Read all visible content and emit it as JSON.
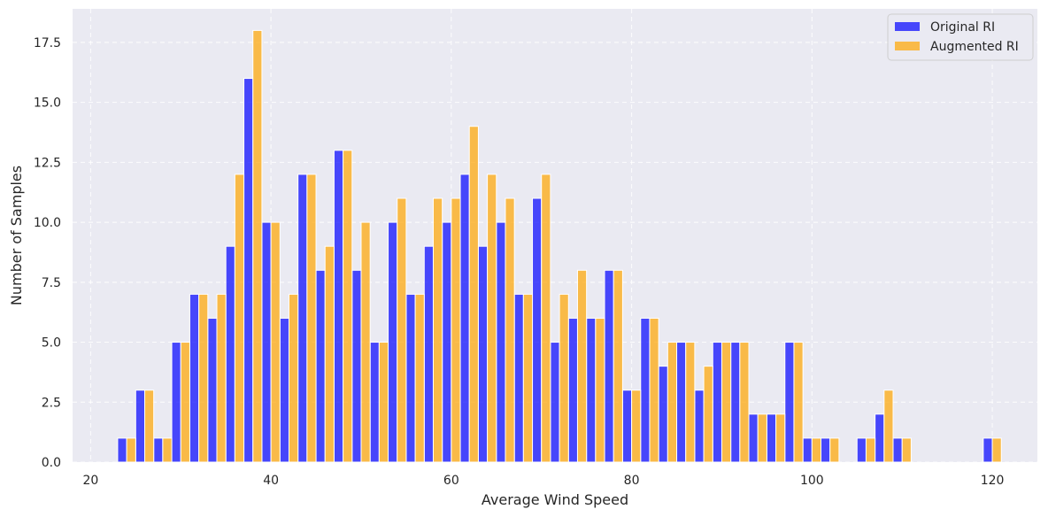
{
  "chart_data": {
    "type": "bar",
    "title": "",
    "xlabel": "Average Wind Speed",
    "ylabel": "Number of Samples",
    "xlim": [
      18,
      125
    ],
    "ylim": [
      0,
      18.9
    ],
    "grid": true,
    "legend_position": "top-right",
    "x_ticks": [
      20,
      40,
      60,
      80,
      100,
      120
    ],
    "x_tick_labels": [
      "20",
      "40",
      "60",
      "80",
      "100",
      "120"
    ],
    "y_ticks": [
      0,
      2.5,
      5,
      7.5,
      10,
      12.5,
      15,
      17.5
    ],
    "y_tick_labels": [
      "0.0",
      "2.5",
      "5.0",
      "7.5",
      "10.0",
      "12.5",
      "15.0",
      "17.5"
    ],
    "bin_width": 2,
    "x": [
      24,
      26,
      28,
      30,
      32,
      34,
      36,
      38,
      40,
      42,
      44,
      46,
      48,
      50,
      52,
      54,
      56,
      58,
      60,
      62,
      64,
      66,
      68,
      70,
      72,
      74,
      76,
      78,
      80,
      82,
      84,
      86,
      88,
      90,
      92,
      94,
      96,
      98,
      100,
      102,
      104,
      106,
      108,
      110,
      112,
      114,
      116,
      118,
      120
    ],
    "series": [
      {
        "name": "Original RI",
        "color": "#0000ff",
        "values": [
          1,
          3,
          1,
          5,
          7,
          6,
          9,
          16,
          10,
          6,
          12,
          8,
          13,
          8,
          5,
          10,
          7,
          9,
          10,
          12,
          9,
          10,
          7,
          11,
          5,
          6,
          6,
          8,
          3,
          6,
          4,
          5,
          3,
          5,
          5,
          2,
          2,
          5,
          1,
          1,
          0,
          1,
          2,
          1,
          0,
          0,
          0,
          0,
          1
        ]
      },
      {
        "name": "Augmented RI",
        "color": "#ffa500",
        "values": [
          1,
          3,
          1,
          5,
          7,
          7,
          12,
          18,
          10,
          7,
          12,
          9,
          13,
          10,
          5,
          11,
          7,
          11,
          11,
          14,
          12,
          11,
          7,
          12,
          7,
          8,
          6,
          8,
          3,
          6,
          5,
          5,
          4,
          5,
          5,
          2,
          2,
          5,
          1,
          1,
          0,
          1,
          3,
          1,
          0,
          0,
          0,
          0,
          1
        ]
      }
    ]
  },
  "colors": {
    "plot_background": "#eaeaf2",
    "grid": "#ffffff"
  }
}
